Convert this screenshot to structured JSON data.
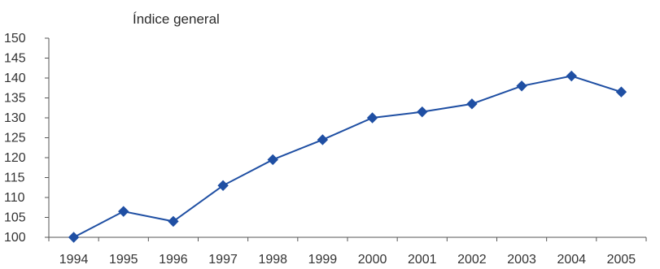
{
  "chart_data": {
    "type": "line",
    "title": "Índice general",
    "xlabel": "",
    "ylabel": "",
    "categories": [
      "1994",
      "1995",
      "1996",
      "1997",
      "1998",
      "1999",
      "2000",
      "2001",
      "2002",
      "2003",
      "2004",
      "2005"
    ],
    "series": [
      {
        "values": [
          100,
          106.5,
          104,
          113,
          119.5,
          124.5,
          130,
          131.5,
          133.5,
          138,
          140.5,
          136.5
        ],
        "color": "#1f4fa3",
        "marker": "diamond"
      }
    ],
    "ylim": [
      100,
      150
    ],
    "yticks": [
      "100",
      "105",
      "110",
      "115",
      "120",
      "125",
      "130",
      "135",
      "140",
      "145",
      "150"
    ],
    "grid": false,
    "legend": "none"
  }
}
